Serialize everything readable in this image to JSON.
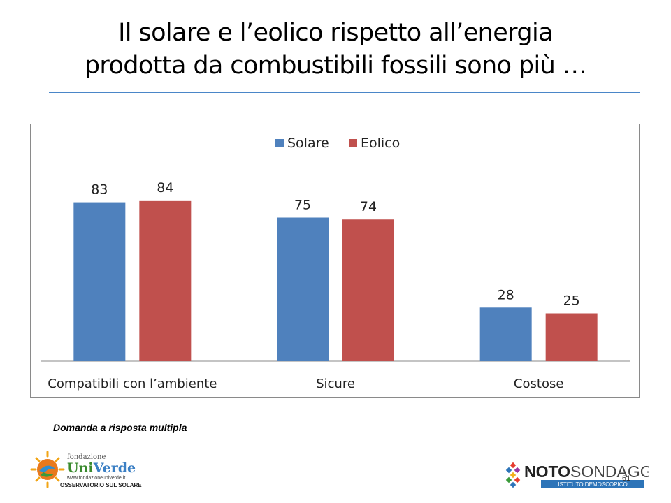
{
  "slide": {
    "title_line1": "Il solare  e l’eolico rispetto all’energia",
    "title_line2": "prodotta da combustibili fossili sono più …",
    "note": "Domanda a risposta multipla",
    "page_number": "61"
  },
  "logos": {
    "left": {
      "line1": "fondazione",
      "line2a": "Uni",
      "line2b": "Verde",
      "line3": "www.fondazioneuniverde.it",
      "line4": "OSSERVATORIO SUL SOLARE"
    },
    "right": {
      "name_a": "NOTO",
      "name_b": "SONDAGGI",
      "tagline": "ISTITUTO DEMOSCOPICO"
    }
  },
  "colors": {
    "accent_rule": "#4a86c8",
    "solare": "#4f81bd",
    "eolico": "#c0504d"
  },
  "chart_data": {
    "type": "bar",
    "categories": [
      "Compatibili con l’ambiente",
      "Sicure",
      "Costose"
    ],
    "series": [
      {
        "name": "Solare",
        "values": [
          83,
          75,
          28
        ],
        "color": "#4f81bd"
      },
      {
        "name": "Eolico",
        "values": [
          84,
          74,
          25
        ],
        "color": "#c0504d"
      }
    ],
    "ylim": [
      0,
      100
    ],
    "grid": false,
    "legend": "top-center",
    "data_labels": true
  }
}
